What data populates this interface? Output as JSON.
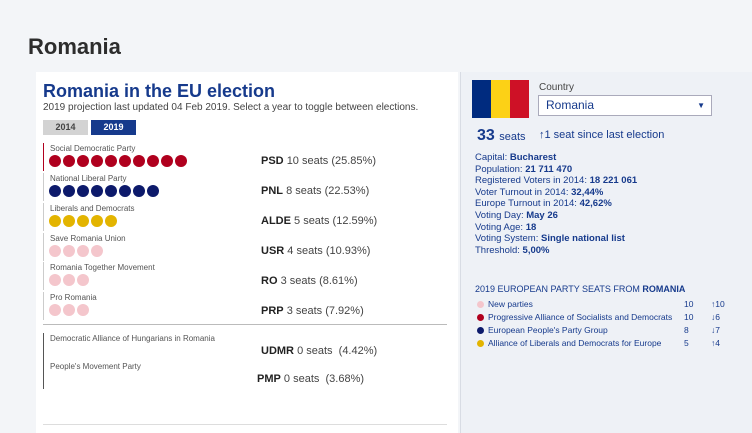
{
  "page": {
    "title": "Romania"
  },
  "election": {
    "title": "Romania in the EU election",
    "subtitle": "2019 projection last updated 04 Feb 2019. Select a year to toggle between elections.",
    "years": [
      "2014",
      "2019"
    ],
    "selected_year": "2019"
  },
  "parties": [
    {
      "name": "Social Democratic Party",
      "abbr": "PSD",
      "seats_text": "10 seats",
      "pct": "(25.85%)",
      "seats": 10,
      "color": "#b0001e"
    },
    {
      "name": "National Liberal Party",
      "abbr": "PNL",
      "seats_text": "8 seats",
      "pct": "(22.53%)",
      "seats": 8,
      "color": "#0d1a6b"
    },
    {
      "name": "Liberals and Democrats",
      "abbr": "ALDE",
      "seats_text": "5 seats",
      "pct": "(12.59%)",
      "seats": 5,
      "color": "#e3b400"
    },
    {
      "name": "Save Romania Union",
      "abbr": "USR",
      "seats_text": "4 seats",
      "pct": "(10.93%)",
      "seats": 4,
      "color": "#f4c6cc"
    },
    {
      "name": "Romania Together Movement",
      "abbr": "RO",
      "seats_text": "3 seats",
      "pct": "(8.61%)",
      "seats": 3,
      "color": "#f4c6cc"
    },
    {
      "name": "Pro Romania",
      "abbr": "PRP",
      "seats_text": "3 seats",
      "pct": "(7.92%)",
      "seats": 3,
      "color": "#f4c6cc"
    }
  ],
  "minor_parties": [
    {
      "name": "Democratic Alliance of Hungarians in Romania",
      "abbr": "UDMR",
      "seats_text": "0 seats",
      "pct": "(4.42%)"
    },
    {
      "name": "People's Movement Party",
      "abbr": "PMP",
      "seats_text": "0 seats",
      "pct": "(3.68%)"
    }
  ],
  "country_panel": {
    "flag_colors": [
      "#002b7f",
      "#fcd116",
      "#ce1126"
    ],
    "country_label": "Country",
    "country_value": "Romania",
    "seats_number": "33",
    "seats_unit": "seats",
    "seats_change": "↑1 seat since last election",
    "facts": [
      {
        "label": "Capital:",
        "value": "Bucharest"
      },
      {
        "label": "Population:",
        "value": "21 711 470"
      },
      {
        "label": "Registered Voters in 2014:",
        "value": "18 221 061"
      },
      {
        "label": "Voter Turnout in 2014:",
        "value": "32,44%"
      },
      {
        "label": "Europe Turnout in 2014:",
        "value": "42,62%"
      },
      {
        "label": "Voting Day:",
        "value": "May 26"
      },
      {
        "label": "Voting Age:",
        "value": "18"
      },
      {
        "label": "Voting System:",
        "value": "Single national list"
      },
      {
        "label": "Threshold:",
        "value": "5,00%"
      }
    ],
    "ep_heading_prefix": "2019 EUROPEAN PARTY SEATS FROM",
    "ep_heading_country": "ROMANIA",
    "ep_groups": [
      {
        "name": "New parties",
        "seats": "10",
        "change": "↑10",
        "color": "#f4c6cc"
      },
      {
        "name": "Progressive Alliance of Socialists and Democrats",
        "seats": "10",
        "change": "↓6",
        "color": "#b0001e"
      },
      {
        "name": "European People's Party Group",
        "seats": "8",
        "change": "↓7",
        "color": "#0d1a6b"
      },
      {
        "name": "Alliance of Liberals and Democrats for Europe",
        "seats": "5",
        "change": "↑4",
        "color": "#e3b400"
      }
    ]
  }
}
